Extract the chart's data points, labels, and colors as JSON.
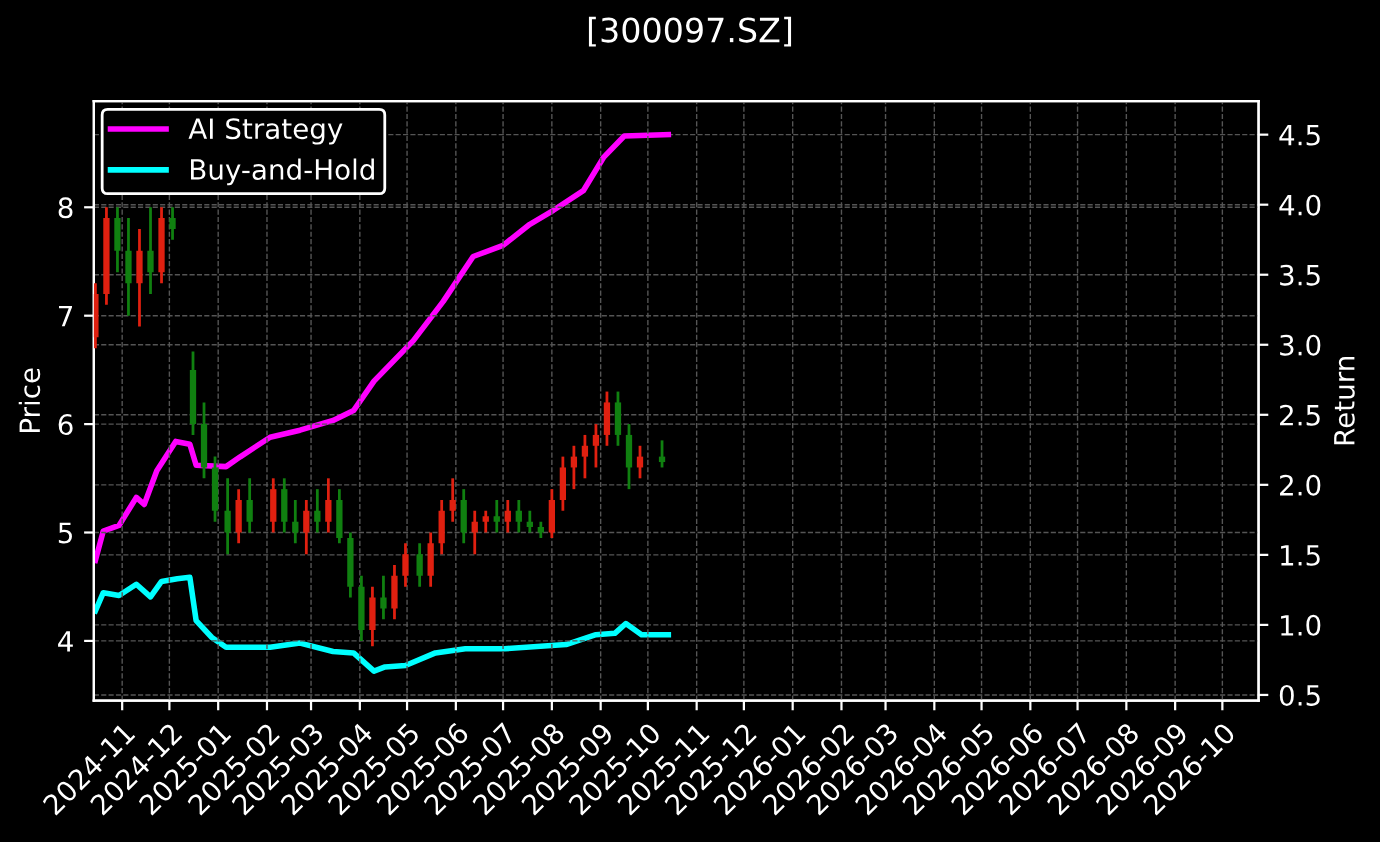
{
  "chart_data": {
    "type": "candlestick",
    "title": "[300097.SZ]",
    "ylabel": "Price",
    "y2label": "Return",
    "x": [
      "2024-10-15",
      "2024-10-22",
      "2024-10-29",
      "2024-11-05",
      "2024-11-12",
      "2024-11-19",
      "2024-11-26",
      "2024-12-03",
      "2024-12-16",
      "2024-12-23",
      "2024-12-30",
      "2025-01-07",
      "2025-01-14",
      "2025-01-21",
      "2025-02-05",
      "2025-02-12",
      "2025-02-19",
      "2025-02-26",
      "2025-03-05",
      "2025-03-12",
      "2025-03-19",
      "2025-03-26",
      "2025-04-02",
      "2025-04-09",
      "2025-04-16",
      "2025-04-23",
      "2025-04-30",
      "2025-05-09",
      "2025-05-16",
      "2025-05-23",
      "2025-05-30",
      "2025-06-06",
      "2025-06-13",
      "2025-06-20",
      "2025-06-27",
      "2025-07-04",
      "2025-07-11",
      "2025-07-18",
      "2025-07-25",
      "2025-08-01",
      "2025-08-08",
      "2025-08-15",
      "2025-08-22",
      "2025-08-29",
      "2025-09-05",
      "2025-09-12",
      "2025-09-19",
      "2025-09-26",
      "2025-10-10"
    ],
    "ohlc": [
      [
        6.8,
        7.3,
        6.7,
        7.2
      ],
      [
        7.2,
        8.0,
        7.1,
        7.9
      ],
      [
        7.9,
        8.0,
        7.4,
        7.6
      ],
      [
        7.6,
        7.9,
        7.0,
        7.3
      ],
      [
        7.3,
        7.8,
        6.9,
        7.6
      ],
      [
        7.6,
        8.0,
        7.2,
        7.4
      ],
      [
        7.4,
        8.0,
        7.3,
        7.9
      ],
      [
        7.9,
        8.0,
        7.7,
        7.8
      ],
      [
        6.5,
        6.67,
        5.9,
        6.0
      ],
      [
        6.0,
        6.2,
        5.5,
        5.6
      ],
      [
        5.6,
        5.7,
        5.1,
        5.2
      ],
      [
        5.2,
        5.5,
        4.8,
        5.0
      ],
      [
        5.0,
        5.4,
        4.9,
        5.3
      ],
      [
        5.3,
        5.5,
        5.0,
        5.1
      ],
      [
        5.1,
        5.5,
        5.0,
        5.4
      ],
      [
        5.4,
        5.5,
        5.0,
        5.1
      ],
      [
        5.1,
        5.3,
        4.9,
        5.0
      ],
      [
        5.0,
        5.3,
        4.8,
        5.2
      ],
      [
        5.2,
        5.4,
        5.0,
        5.1
      ],
      [
        5.1,
        5.5,
        5.0,
        5.3
      ],
      [
        5.3,
        5.4,
        4.9,
        4.95
      ],
      [
        4.95,
        5.0,
        4.4,
        4.5
      ],
      [
        4.5,
        4.6,
        4.0,
        4.1
      ],
      [
        4.1,
        4.5,
        3.95,
        4.4
      ],
      [
        4.4,
        4.6,
        4.2,
        4.3
      ],
      [
        4.3,
        4.7,
        4.2,
        4.6
      ],
      [
        4.6,
        4.9,
        4.5,
        4.8
      ],
      [
        4.8,
        4.9,
        4.5,
        4.6
      ],
      [
        4.6,
        5.0,
        4.5,
        4.9
      ],
      [
        4.9,
        5.3,
        4.8,
        5.2
      ],
      [
        5.2,
        5.5,
        5.1,
        5.3
      ],
      [
        5.3,
        5.4,
        4.9,
        5.0
      ],
      [
        5.0,
        5.2,
        4.8,
        5.1
      ],
      [
        5.1,
        5.2,
        5.0,
        5.15
      ],
      [
        5.15,
        5.3,
        5.0,
        5.1
      ],
      [
        5.1,
        5.3,
        5.0,
        5.2
      ],
      [
        5.2,
        5.3,
        5.0,
        5.1
      ],
      [
        5.1,
        5.2,
        5.0,
        5.05
      ],
      [
        5.05,
        5.1,
        4.95,
        5.0
      ],
      [
        5.0,
        5.4,
        4.95,
        5.3
      ],
      [
        5.3,
        5.7,
        5.2,
        5.6
      ],
      [
        5.6,
        5.8,
        5.4,
        5.7
      ],
      [
        5.7,
        5.9,
        5.5,
        5.8
      ],
      [
        5.8,
        6.0,
        5.6,
        5.9
      ],
      [
        5.9,
        6.3,
        5.8,
        6.2
      ],
      [
        6.2,
        6.3,
        5.8,
        5.9
      ],
      [
        5.9,
        6.0,
        5.4,
        5.6
      ],
      [
        5.6,
        5.8,
        5.5,
        5.7
      ],
      [
        5.7,
        5.85,
        5.6,
        5.65
      ]
    ],
    "colors": [
      "#e02010",
      "#e02010",
      "#108010",
      "#108010",
      "#e02010",
      "#108010",
      "#e02010",
      "#108010",
      "#108010",
      "#108010",
      "#108010",
      "#108010",
      "#e02010",
      "#108010",
      "#e02010",
      "#108010",
      "#108010",
      "#e02010",
      "#108010",
      "#e02010",
      "#108010",
      "#108010",
      "#108010",
      "#e02010",
      "#108010",
      "#e02010",
      "#e02010",
      "#108010",
      "#e02010",
      "#e02010",
      "#e02010",
      "#108010",
      "#e02010",
      "#e02010",
      "#108010",
      "#e02010",
      "#108010",
      "#108010",
      "#108010",
      "#e02010",
      "#e02010",
      "#e02010",
      "#e02010",
      "#e02010",
      "#e02010",
      "#108010",
      "#108010",
      "#e02010",
      "#108010"
    ],
    "series": [
      {
        "name": "AI Strategy",
        "type": "line",
        "axis": "y2",
        "color": "#ff00ff",
        "x": [
          "2024-10-15",
          "2024-10-20",
          "2024-10-30",
          "2024-11-10",
          "2024-11-15",
          "2024-11-23",
          "2024-12-05",
          "2024-12-14",
          "2024-12-18",
          "2025-01-06",
          "2025-01-15",
          "2025-02-03",
          "2025-02-22",
          "2025-03-15",
          "2025-03-28",
          "2025-04-10",
          "2025-05-05",
          "2025-05-24",
          "2025-06-12",
          "2025-07-01",
          "2025-07-18",
          "2025-08-02",
          "2025-08-21",
          "2025-09-03",
          "2025-09-16",
          "2025-10-14"
        ],
        "values": [
          1.46,
          1.67,
          1.71,
          1.91,
          1.86,
          2.1,
          2.31,
          2.29,
          2.14,
          2.13,
          2.2,
          2.34,
          2.39,
          2.46,
          2.53,
          2.74,
          3.03,
          3.31,
          3.63,
          3.71,
          3.86,
          3.96,
          4.1,
          4.34,
          4.49,
          4.5
        ]
      },
      {
        "name": "Buy-and-Hold",
        "type": "line",
        "axis": "y2",
        "color": "#00ffff",
        "x": [
          "2024-10-15",
          "2024-10-20",
          "2024-10-30",
          "2024-11-10",
          "2024-11-19",
          "2024-11-26",
          "2024-12-06",
          "2024-12-14",
          "2024-12-18",
          "2024-12-28",
          "2025-01-06",
          "2025-02-03",
          "2025-02-22",
          "2025-03-15",
          "2025-03-28",
          "2025-04-10",
          "2025-04-17",
          "2025-04-30",
          "2025-05-19",
          "2025-06-07",
          "2025-07-02",
          "2025-08-10",
          "2025-08-29",
          "2025-09-10",
          "2025-09-17",
          "2025-09-27",
          "2025-10-14"
        ],
        "values": [
          1.1,
          1.23,
          1.21,
          1.29,
          1.2,
          1.31,
          1.33,
          1.34,
          1.03,
          0.91,
          0.84,
          0.84,
          0.87,
          0.81,
          0.8,
          0.67,
          0.7,
          0.71,
          0.8,
          0.83,
          0.83,
          0.86,
          0.93,
          0.94,
          1.01,
          0.93,
          0.93
        ]
      }
    ],
    "xlim": [
      "2024-10-14",
      "2026-10-24"
    ],
    "xticks": [
      "2024-11",
      "2024-12",
      "2025-01",
      "2025-02",
      "2025-03",
      "2025-04",
      "2025-05",
      "2025-06",
      "2025-07",
      "2025-08",
      "2025-09",
      "2025-10",
      "2025-11",
      "2025-12",
      "2026-01",
      "2026-02",
      "2026-03",
      "2026-04",
      "2026-05",
      "2026-06",
      "2026-07",
      "2026-08",
      "2026-09",
      "2026-10"
    ],
    "ylim": [
      3.45,
      8.98
    ],
    "yticks": [
      4,
      5,
      6,
      7,
      8
    ],
    "y2lim": [
      0.46,
      4.74
    ],
    "y2ticks": [
      0.5,
      {
        "value": 1,
        "label": "1.0"
      },
      1.5,
      {
        "value": 2,
        "label": "2.0"
      },
      2.5,
      {
        "value": 3,
        "label": "3.0"
      },
      3.5,
      {
        "value": 4,
        "label": "4.0"
      },
      4.5
    ],
    "grid": true,
    "legend": "top left"
  }
}
